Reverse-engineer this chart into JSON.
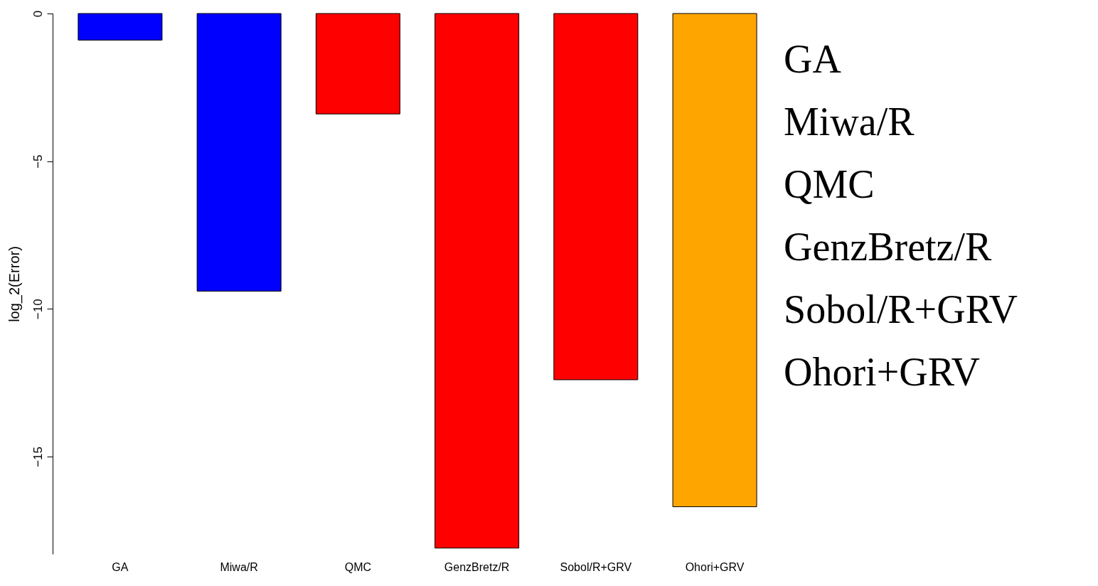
{
  "chart_data": {
    "type": "bar",
    "ylabel": "log_2(Error)",
    "categories": [
      "GA",
      "Miwa/R",
      "QMC",
      "GenzBretz/R",
      "Sobol/R+GRV",
      "Ohori+GRV"
    ],
    "values": [
      -0.9,
      -9.4,
      -3.4,
      -18.1,
      -12.4,
      -16.7
    ],
    "colors": [
      "#0000ff",
      "#0000ff",
      "#ff0000",
      "#ff0000",
      "#ff0000",
      "#ffa500"
    ],
    "ylim": [
      -18.3,
      0
    ],
    "yticks": [
      0,
      -5,
      -10,
      -15
    ],
    "annotations": [
      "GA",
      "Miwa/R",
      "QMC",
      "GenzBretz/R",
      "Sobol/R+GRV",
      "Ohori+GRV"
    ]
  }
}
